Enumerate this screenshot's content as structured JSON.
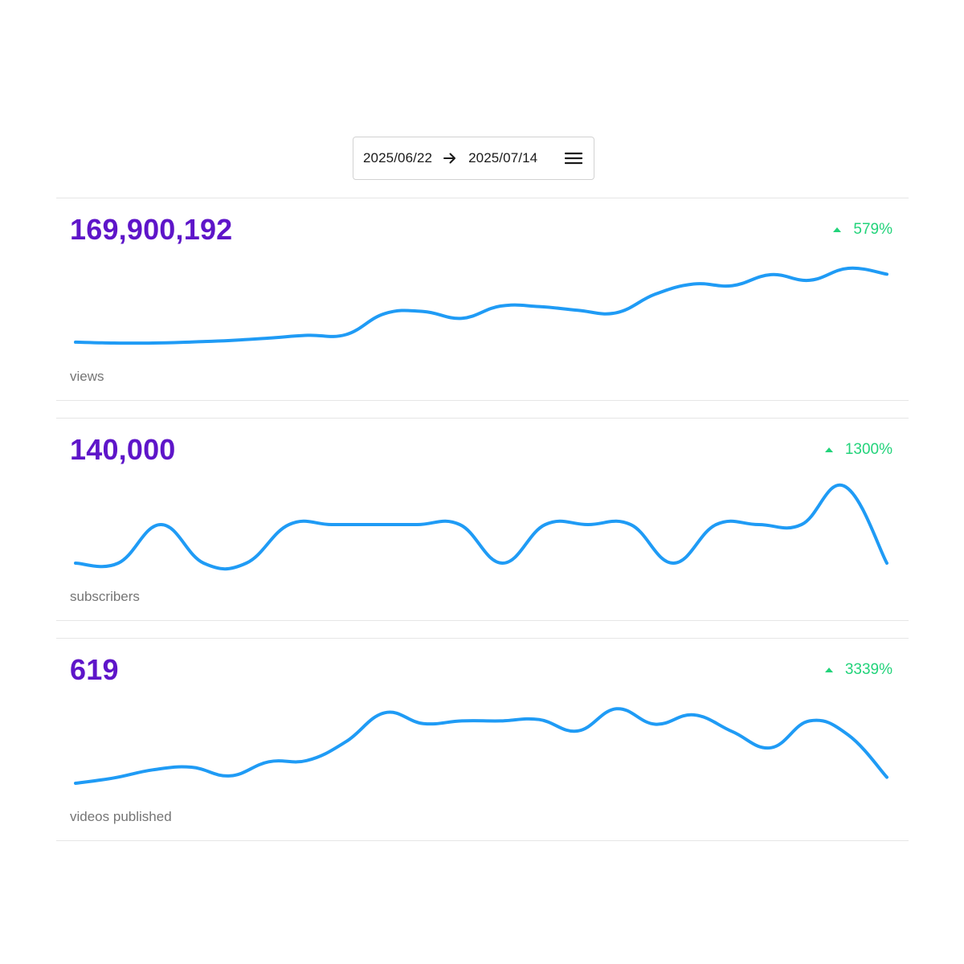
{
  "date_range": {
    "start": "2025/06/22",
    "end": "2025/07/14"
  },
  "icons": {
    "arrow": "arrow-right-icon",
    "menu": "menu-icon",
    "trend": "triangle-up-icon"
  },
  "colors": {
    "value": "#5e15c9",
    "trend_up": "#22d37a",
    "line": "#1f9bf5"
  },
  "metrics": [
    {
      "value": "169,900,192",
      "change": "579%",
      "label": "views"
    },
    {
      "value": "140,000",
      "change": "1300%",
      "label": "subscribers"
    },
    {
      "value": "619",
      "change": "3339%",
      "label": "videos published"
    }
  ],
  "chart_data": [
    {
      "type": "line",
      "title": "",
      "series": [
        {
          "values": [
            0.06,
            0.0,
            0.0,
            0.07,
            0.17,
            0.33,
            0.52,
            0.57,
            1.98,
            2.13,
            1.67,
            2.49,
            2.46,
            2.21,
            2.04,
            3.29,
            3.98,
            3.87,
            4.61,
            4.23,
            5.04,
            4.64
          ]
        }
      ],
      "ylim": [
        0,
        5.2
      ]
    },
    {
      "type": "line",
      "title": "",
      "series": [
        {
          "values": [
            0,
            0,
            1,
            0,
            0,
            1,
            1,
            1,
            1,
            1,
            0,
            1,
            1,
            1,
            0,
            1,
            1,
            1,
            2,
            0
          ]
        }
      ],
      "ylim": [
        0,
        2
      ]
    },
    {
      "type": "line",
      "title": "",
      "series": [
        {
          "values": [
            0.0,
            0.08,
            0.2,
            0.24,
            0.11,
            0.32,
            0.34,
            0.62,
            1.05,
            0.89,
            0.93,
            0.93,
            0.95,
            0.78,
            1.11,
            0.88,
            1.02,
            0.77,
            0.53,
            0.93,
            0.72,
            0.09
          ]
        }
      ],
      "ylim": [
        0,
        1.15
      ]
    }
  ]
}
